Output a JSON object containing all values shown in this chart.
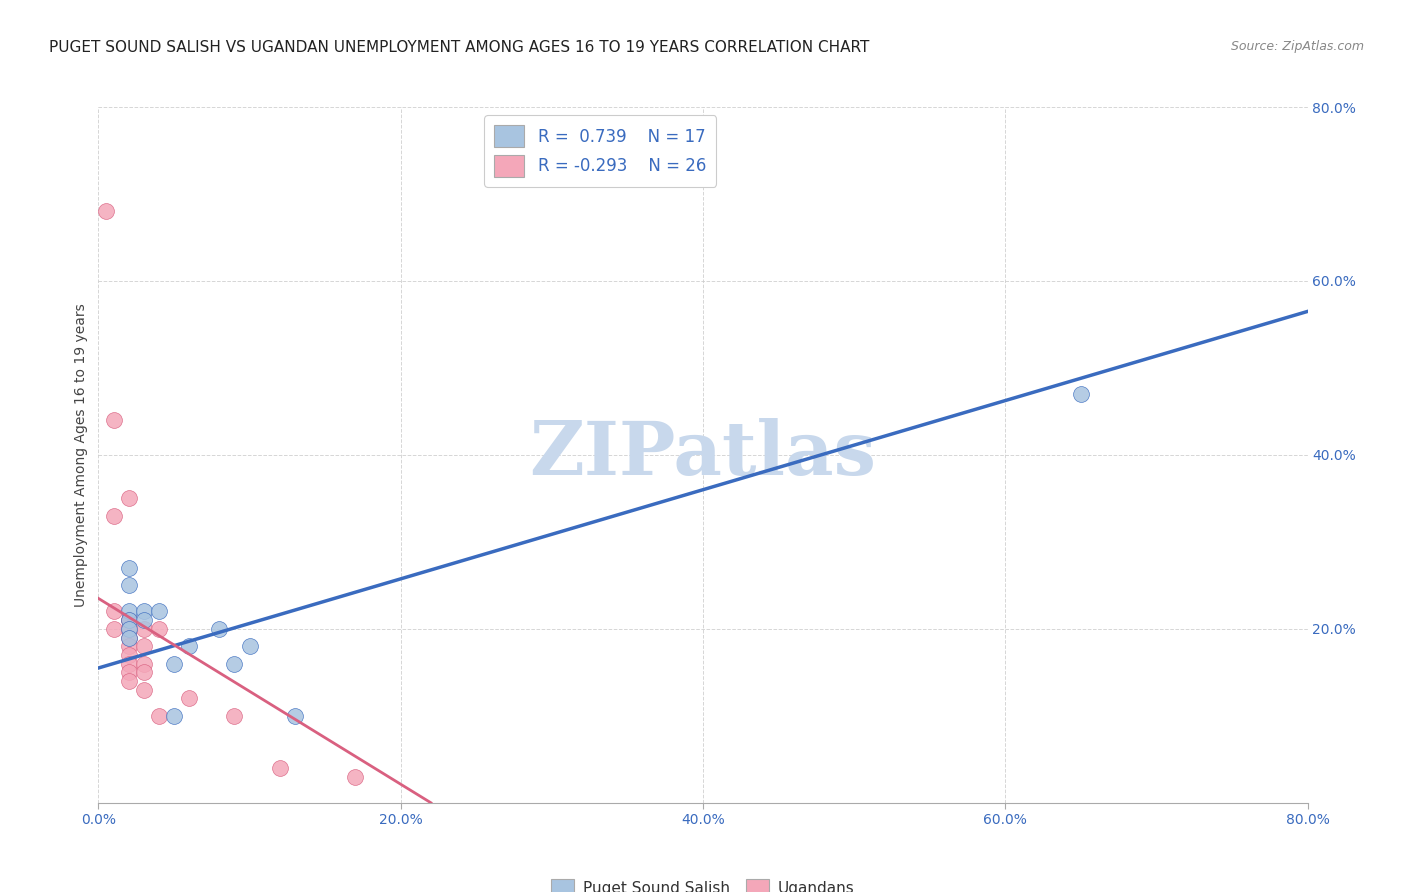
{
  "title": "PUGET SOUND SALISH VS UGANDAN UNEMPLOYMENT AMONG AGES 16 TO 19 YEARS CORRELATION CHART",
  "source": "Source: ZipAtlas.com",
  "ylabel": "Unemployment Among Ages 16 to 19 years",
  "xlim": [
    0.0,
    0.8
  ],
  "ylim": [
    0.0,
    0.8
  ],
  "yticks": [
    0.0,
    0.2,
    0.4,
    0.6,
    0.8
  ],
  "xticks": [
    0.0,
    0.2,
    0.4,
    0.6,
    0.8
  ],
  "blue_R": 0.739,
  "blue_N": 17,
  "pink_R": -0.293,
  "pink_N": 26,
  "blue_color": "#a8c4e0",
  "pink_color": "#f4a7b9",
  "blue_line_color": "#3a6bbf",
  "pink_line_color": "#d96080",
  "watermark": "ZIPatlas",
  "watermark_color": "#c8d8ec",
  "blue_points": [
    [
      0.02,
      0.27
    ],
    [
      0.02,
      0.25
    ],
    [
      0.02,
      0.22
    ],
    [
      0.02,
      0.21
    ],
    [
      0.02,
      0.2
    ],
    [
      0.02,
      0.19
    ],
    [
      0.03,
      0.22
    ],
    [
      0.03,
      0.21
    ],
    [
      0.04,
      0.22
    ],
    [
      0.05,
      0.16
    ],
    [
      0.05,
      0.1
    ],
    [
      0.06,
      0.18
    ],
    [
      0.08,
      0.2
    ],
    [
      0.09,
      0.16
    ],
    [
      0.1,
      0.18
    ],
    [
      0.13,
      0.1
    ],
    [
      0.65,
      0.47
    ]
  ],
  "pink_points": [
    [
      0.005,
      0.68
    ],
    [
      0.01,
      0.44
    ],
    [
      0.01,
      0.33
    ],
    [
      0.01,
      0.22
    ],
    [
      0.01,
      0.2
    ],
    [
      0.02,
      0.35
    ],
    [
      0.02,
      0.21
    ],
    [
      0.02,
      0.21
    ],
    [
      0.02,
      0.2
    ],
    [
      0.02,
      0.19
    ],
    [
      0.02,
      0.18
    ],
    [
      0.02,
      0.17
    ],
    [
      0.02,
      0.16
    ],
    [
      0.02,
      0.15
    ],
    [
      0.02,
      0.14
    ],
    [
      0.03,
      0.2
    ],
    [
      0.03,
      0.18
    ],
    [
      0.03,
      0.16
    ],
    [
      0.03,
      0.15
    ],
    [
      0.03,
      0.13
    ],
    [
      0.04,
      0.2
    ],
    [
      0.04,
      0.1
    ],
    [
      0.06,
      0.12
    ],
    [
      0.09,
      0.1
    ],
    [
      0.12,
      0.04
    ],
    [
      0.17,
      0.03
    ]
  ],
  "blue_line_x": [
    0.0,
    0.8
  ],
  "blue_line_y": [
    0.155,
    0.565
  ],
  "pink_line_x": [
    0.0,
    0.22
  ],
  "pink_line_y": [
    0.235,
    0.0
  ],
  "title_fontsize": 11,
  "axis_tick_fontsize": 10,
  "ylabel_fontsize": 10,
  "right_ytick_color": "#3a6bbf"
}
